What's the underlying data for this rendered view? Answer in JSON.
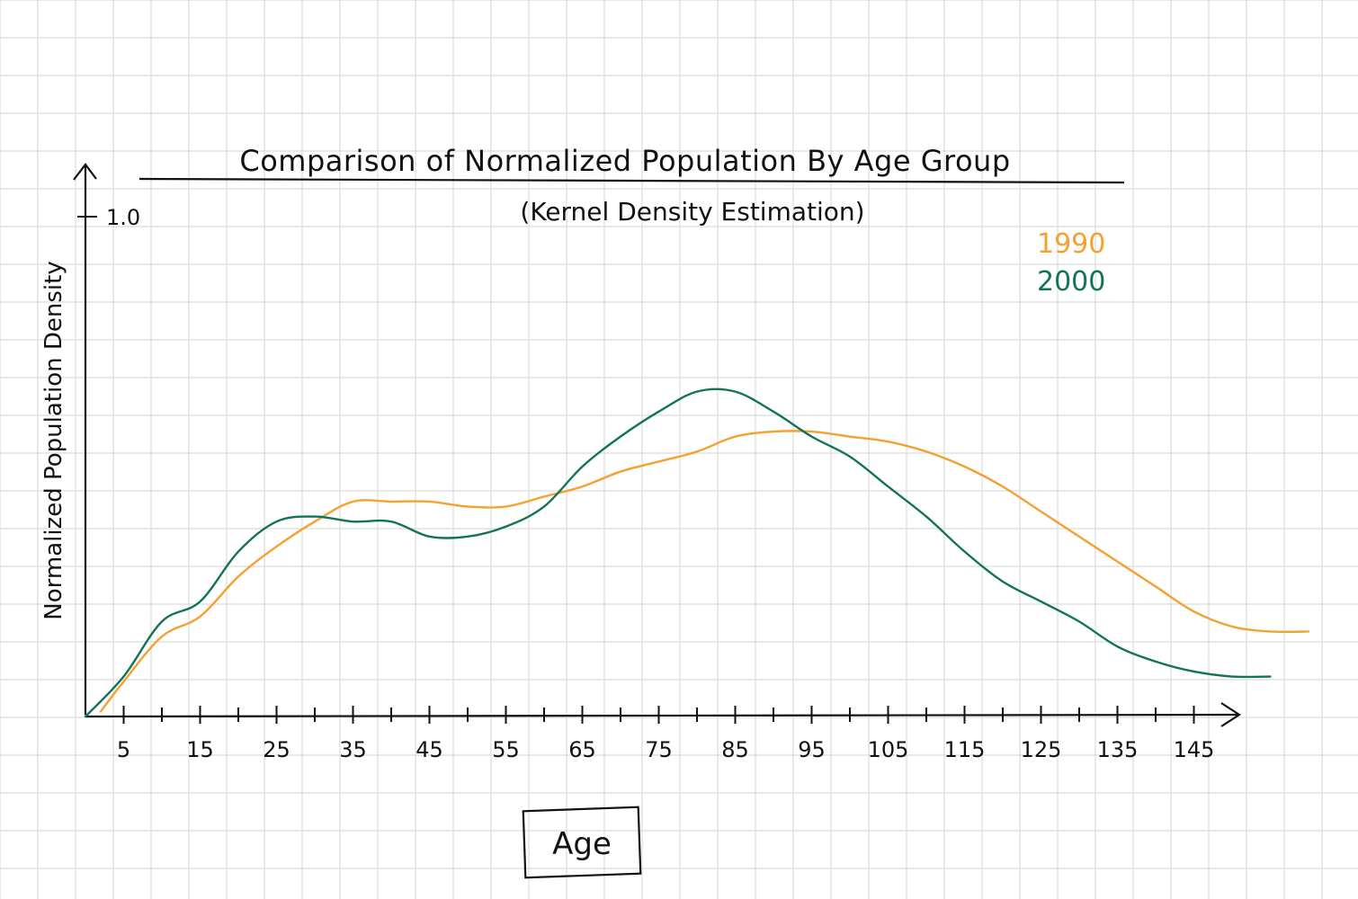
{
  "chart_data": {
    "type": "line",
    "title": "Comparison of Normalized Population By Age Group",
    "subtitle": "(Kernel Density Estimation)",
    "xlabel": "Age",
    "ylabel": "Normalized Population Density",
    "y_tick_labels": [
      "1.0"
    ],
    "ylim": [
      0,
      1.0
    ],
    "xlim": [
      0,
      160
    ],
    "x_tick_labels": [
      "5",
      "15",
      "25",
      "35",
      "45",
      "55",
      "65",
      "75",
      "85",
      "95",
      "105",
      "115",
      "125",
      "135",
      "145"
    ],
    "grid": true,
    "legend_position": "top-right",
    "series": [
      {
        "name": "1990",
        "color": "#F5A030",
        "x": [
          2,
          5,
          10,
          15,
          20,
          25,
          30,
          35,
          40,
          45,
          50,
          55,
          60,
          65,
          70,
          75,
          80,
          85,
          90,
          95,
          100,
          105,
          110,
          115,
          120,
          125,
          130,
          135,
          140,
          145,
          150,
          155,
          160
        ],
        "y": [
          0.01,
          0.07,
          0.16,
          0.2,
          0.28,
          0.34,
          0.39,
          0.43,
          0.43,
          0.43,
          0.42,
          0.42,
          0.44,
          0.46,
          0.49,
          0.51,
          0.53,
          0.56,
          0.57,
          0.57,
          0.56,
          0.55,
          0.53,
          0.5,
          0.46,
          0.41,
          0.36,
          0.31,
          0.26,
          0.21,
          0.18,
          0.17,
          0.17
        ]
      },
      {
        "name": "2000",
        "color": "#13735A",
        "x": [
          0,
          5,
          10,
          15,
          20,
          25,
          30,
          35,
          40,
          45,
          50,
          55,
          60,
          65,
          70,
          75,
          80,
          85,
          90,
          95,
          100,
          105,
          110,
          115,
          120,
          125,
          130,
          135,
          140,
          145,
          150,
          155
        ],
        "y": [
          0.0,
          0.08,
          0.19,
          0.23,
          0.33,
          0.39,
          0.4,
          0.39,
          0.39,
          0.36,
          0.36,
          0.38,
          0.42,
          0.5,
          0.56,
          0.61,
          0.65,
          0.65,
          0.61,
          0.56,
          0.52,
          0.46,
          0.4,
          0.33,
          0.27,
          0.23,
          0.19,
          0.14,
          0.11,
          0.09,
          0.08,
          0.08
        ]
      }
    ]
  }
}
